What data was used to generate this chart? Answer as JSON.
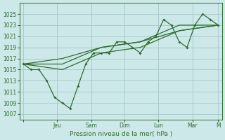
{
  "bg_color": "#cce8e8",
  "grid_color": "#aacccc",
  "line_color": "#2d6e2d",
  "xlabel": "Pression niveau de la mer( hPa )",
  "ylim": [
    1006,
    1027
  ],
  "yticks": [
    1007,
    1009,
    1011,
    1013,
    1015,
    1017,
    1019,
    1021,
    1023,
    1025
  ],
  "day_labels": [
    "",
    "Jeu",
    "Sam",
    "Dim",
    "Lun",
    "Mar",
    "M"
  ],
  "series1_x": [
    0,
    1,
    2,
    3,
    4,
    5,
    6,
    7,
    8,
    9,
    10,
    11,
    12,
    13,
    14,
    15,
    16,
    17,
    18,
    19,
    20,
    21,
    22,
    23,
    24,
    25
  ],
  "series1_y": [
    1016,
    1015,
    1015,
    1013,
    1010,
    1009,
    1008,
    1012,
    1016,
    1018,
    1018,
    1018,
    1020,
    1020,
    1019,
    1018,
    1020,
    1021,
    1024,
    1023,
    1020,
    1019,
    1023,
    1025,
    1024,
    1023
  ],
  "series2_x": [
    0,
    5,
    10,
    15,
    20,
    25
  ],
  "series2_y": [
    1016,
    1015,
    1018,
    1019,
    1022,
    1023
  ],
  "series3_x": [
    0,
    5,
    10,
    15,
    20,
    25
  ],
  "series3_y": [
    1016,
    1016,
    1019,
    1020,
    1022,
    1023
  ],
  "series4_x": [
    0,
    5,
    10,
    15,
    20,
    25
  ],
  "series4_y": [
    1016,
    1017,
    1019,
    1020,
    1023,
    1023
  ],
  "n_points": 26,
  "day_positions": [
    0,
    4.3,
    8.7,
    13.0,
    17.3,
    21.7,
    25
  ]
}
